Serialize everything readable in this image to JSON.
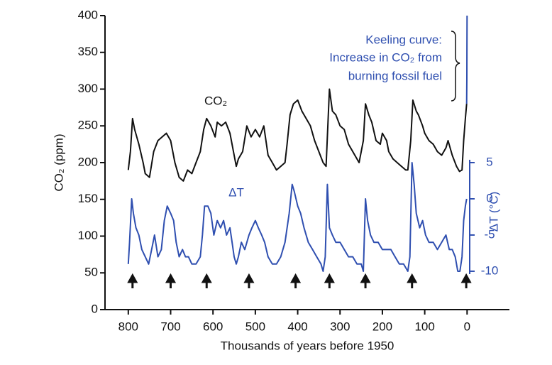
{
  "chart_data": {
    "type": "line",
    "xlabel": "Thousands of years before 1950",
    "ylabel": "CO₂ (ppm)",
    "y2label": "ΔT (°C)",
    "xlim": [
      855,
      -100
    ],
    "xticks": [
      800,
      700,
      600,
      500,
      400,
      300,
      200,
      100,
      0
    ],
    "ylim": [
      0,
      400
    ],
    "yticks": [
      0,
      50,
      100,
      150,
      200,
      250,
      300,
      350,
      400
    ],
    "y2lim": [
      -15.3,
      25.3
    ],
    "y2ticks": [
      5,
      0,
      -5,
      -10
    ],
    "y2color": "#2f4fb0",
    "series": [
      {
        "name": "CO₂",
        "color": "#111111",
        "x": [
          800,
          795,
          790,
          785,
          775,
          765,
          760,
          750,
          740,
          730,
          720,
          710,
          700,
          690,
          680,
          670,
          660,
          650,
          640,
          630,
          622,
          615,
          605,
          595,
          590,
          580,
          570,
          560,
          550,
          545,
          540,
          530,
          520,
          510,
          500,
          490,
          480,
          470,
          460,
          450,
          440,
          430,
          425,
          418,
          410,
          400,
          390,
          380,
          370,
          360,
          350,
          340,
          333,
          325,
          318,
          310,
          300,
          290,
          280,
          270,
          260,
          255,
          245,
          240,
          232,
          225,
          215,
          205,
          200,
          190,
          185,
          175,
          165,
          155,
          145,
          140,
          133,
          128,
          120,
          115,
          105,
          100,
          90,
          80,
          70,
          60,
          50,
          45,
          35,
          25,
          18,
          12,
          8,
          4,
          1
        ],
        "values": [
          190,
          215,
          260,
          245,
          225,
          200,
          185,
          180,
          215,
          230,
          235,
          240,
          230,
          200,
          180,
          175,
          190,
          185,
          200,
          215,
          245,
          260,
          250,
          235,
          255,
          250,
          255,
          240,
          210,
          195,
          205,
          215,
          250,
          235,
          245,
          235,
          250,
          210,
          200,
          190,
          195,
          200,
          225,
          265,
          280,
          285,
          270,
          260,
          250,
          230,
          215,
          200,
          195,
          300,
          270,
          265,
          250,
          245,
          225,
          215,
          205,
          200,
          230,
          280,
          265,
          255,
          230,
          225,
          240,
          230,
          215,
          205,
          200,
          195,
          190,
          190,
          230,
          285,
          270,
          265,
          250,
          240,
          230,
          225,
          215,
          210,
          220,
          230,
          210,
          195,
          188,
          190,
          230,
          260,
          280
        ]
      },
      {
        "name": "Keeling curve",
        "color": "#2f4fb0",
        "x": [
          1,
          0.6,
          0.3,
          0
        ],
        "values": [
          280,
          315,
          350,
          400
        ]
      },
      {
        "name": "ΔT",
        "color": "#2f4fb0",
        "axis": "y2",
        "x": [
          800,
          797,
          792,
          788,
          782,
          775,
          768,
          760,
          752,
          745,
          738,
          730,
          722,
          715,
          708,
          700,
          693,
          687,
          680,
          672,
          665,
          658,
          650,
          640,
          630,
          625,
          620,
          612,
          605,
          598,
          590,
          582,
          575,
          568,
          560,
          555,
          550,
          545,
          540,
          533,
          525,
          515,
          508,
          500,
          493,
          485,
          478,
          470,
          460,
          450,
          440,
          430,
          420,
          413,
          408,
          400,
          393,
          385,
          375,
          365,
          355,
          345,
          340,
          335,
          330,
          325,
          318,
          310,
          300,
          290,
          280,
          270,
          260,
          250,
          245,
          240,
          235,
          228,
          220,
          210,
          200,
          190,
          180,
          170,
          160,
          150,
          140,
          135,
          130,
          125,
          120,
          112,
          105,
          98,
          90,
          80,
          70,
          60,
          50,
          42,
          35,
          28,
          22,
          17,
          12,
          8,
          4,
          1
        ],
        "values": [
          -9,
          -6,
          0,
          -2,
          -4,
          -5,
          -7,
          -8,
          -9,
          -7,
          -5,
          -8,
          -7,
          -3,
          -1,
          -2,
          -3,
          -6,
          -8,
          -7,
          -8,
          -8,
          -9,
          -9,
          -8,
          -5,
          -1,
          -1,
          -2,
          -5,
          -3,
          -4,
          -3,
          -5,
          -4,
          -6,
          -8,
          -9,
          -8,
          -6,
          -7,
          -5,
          -4,
          -3,
          -4,
          -5,
          -6,
          -8,
          -9,
          -9,
          -8,
          -6,
          -2,
          2,
          1,
          -1,
          -2,
          -4,
          -6,
          -7,
          -8,
          -9,
          -10,
          -8,
          2,
          -4,
          -5,
          -6,
          -6,
          -7,
          -8,
          -8,
          -9,
          -9,
          -10,
          0,
          -3,
          -5,
          -6,
          -6,
          -7,
          -7,
          -7,
          -8,
          -9,
          -9,
          -10,
          -8,
          5,
          2,
          -2,
          -4,
          -3,
          -5,
          -6,
          -6,
          -7,
          -6,
          -5,
          -7,
          -7,
          -8,
          -10,
          -10,
          -8,
          -3,
          -1,
          0
        ]
      }
    ],
    "arrows": [
      790,
      700,
      615,
      515,
      405,
      325,
      240,
      130,
      2
    ],
    "annotations": [
      "Keeling curve:",
      "Increase in CO₂ from",
      "burning fossil fuel",
      "CO₂",
      "ΔT"
    ]
  }
}
